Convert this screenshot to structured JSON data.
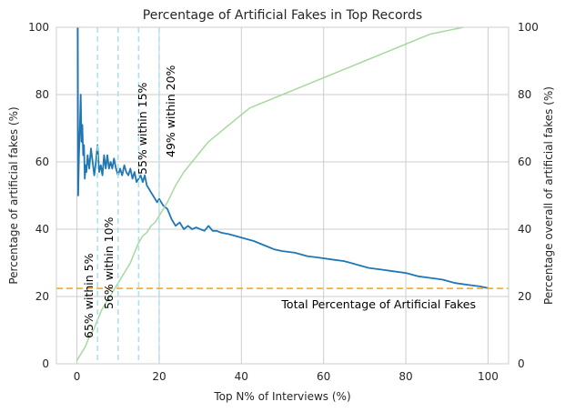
{
  "chart_data": {
    "type": "line",
    "title": "Percentage of Artificial Fakes in Top Records",
    "xlabel": "Top N% of Interviews (%)",
    "ylabel": "Percentage of artificial fakes (%)",
    "y2label": "Percentage overall of artificial fakes (%)",
    "xlim": [
      -5,
      105
    ],
    "ylim": [
      0,
      100
    ],
    "y2lim": [
      0,
      100
    ],
    "xticks": [
      0,
      20,
      40,
      60,
      80,
      100
    ],
    "yticks": [
      0,
      20,
      40,
      60,
      80,
      100
    ],
    "y2ticks": [
      0,
      20,
      40,
      60,
      80,
      100
    ],
    "grid": true,
    "series": [
      {
        "name": "",
        "axis": "left",
        "color": "#1f77b4",
        "x": [
          0.2,
          0.3,
          0.5,
          0.7,
          0.9,
          1.1,
          1.3,
          1.5,
          1.7,
          1.9,
          2.1,
          2.3,
          2.6,
          3.0,
          3.4,
          3.8,
          4.2,
          4.6,
          5.0,
          5.4,
          5.8,
          6.2,
          6.6,
          7.0,
          7.4,
          7.8,
          8.2,
          8.6,
          9.0,
          9.5,
          10.0,
          10.5,
          11.0,
          11.5,
          12.0,
          12.5,
          13.0,
          13.5,
          14.0,
          14.5,
          15.0,
          15.5,
          16.0,
          16.5,
          17.0,
          17.5,
          18.0,
          18.5,
          19.0,
          19.5,
          20.0,
          20.5,
          21.0,
          22.0,
          23.0,
          24.0,
          25.0,
          26.0,
          27.0,
          28.0,
          29.0,
          30.0,
          31.0,
          32.0,
          33.0,
          34.0,
          35.0,
          37.0,
          40.0,
          43.0,
          46.0,
          48.0,
          50.0,
          53.0,
          56.0,
          59.0,
          62.0,
          65.0,
          68.0,
          71.0,
          74.0,
          77.0,
          80.0,
          83.0,
          86.0,
          89.0,
          92.0,
          95.0,
          98.0,
          100.0
        ],
        "values": [
          100,
          50,
          62,
          70,
          80,
          66,
          71,
          62,
          65,
          55,
          59,
          57,
          62,
          58,
          64,
          60,
          56,
          60,
          65,
          57,
          59,
          56,
          62,
          58,
          62,
          58,
          60,
          58,
          61,
          58,
          56,
          58,
          56,
          59,
          57,
          56,
          58,
          55,
          57,
          54,
          55,
          56,
          54,
          56,
          53,
          52,
          51,
          50,
          49,
          48,
          49,
          48,
          47,
          46,
          43,
          41,
          42,
          40,
          41,
          40,
          40.5,
          40,
          39.5,
          41,
          39.5,
          39.5,
          39,
          38.5,
          37.5,
          36.5,
          35,
          34,
          33.5,
          33,
          32,
          31.5,
          31,
          30.5,
          29.5,
          28.5,
          28,
          27.5,
          27,
          26,
          25.5,
          25,
          24,
          23.5,
          23,
          22.5
        ]
      },
      {
        "name": "",
        "axis": "right",
        "color": "#a8d8a0",
        "x": [
          0,
          1,
          2,
          3,
          4,
          5,
          6,
          7,
          8,
          9,
          10,
          11,
          12,
          13,
          14,
          15,
          16,
          17,
          18,
          19,
          20,
          21,
          22,
          24,
          26,
          28,
          30,
          32,
          34,
          36,
          38,
          40,
          42,
          44,
          46,
          48,
          50,
          52,
          54,
          56,
          58,
          60,
          62,
          64,
          66,
          68,
          70,
          72,
          74,
          76,
          78,
          80,
          82,
          84,
          86,
          88,
          90,
          92,
          94
        ],
        "values": [
          1,
          3,
          5,
          8,
          10,
          13,
          16,
          18,
          20,
          22,
          24,
          26,
          28,
          30,
          33,
          36,
          38,
          39,
          41,
          42,
          44,
          46,
          48,
          53,
          57,
          60,
          63,
          66,
          68,
          70,
          72,
          74,
          76,
          77,
          78,
          79,
          80,
          81,
          82,
          83,
          84,
          85,
          86,
          87,
          88,
          89,
          90,
          91,
          92,
          93,
          94,
          95,
          96,
          97,
          98,
          98.5,
          99,
          99.5,
          100
        ]
      }
    ],
    "hline": {
      "y": 22.4,
      "color": "#ffa500",
      "label": "Total Percentage of Artificial Fakes"
    },
    "vlines": [
      {
        "x": 5,
        "label": "65% within 5%"
      },
      {
        "x": 10,
        "label": "56% within 10%"
      },
      {
        "x": 15,
        "label": "55% within 15%"
      },
      {
        "x": 20,
        "label": "49% within 20%"
      }
    ]
  }
}
